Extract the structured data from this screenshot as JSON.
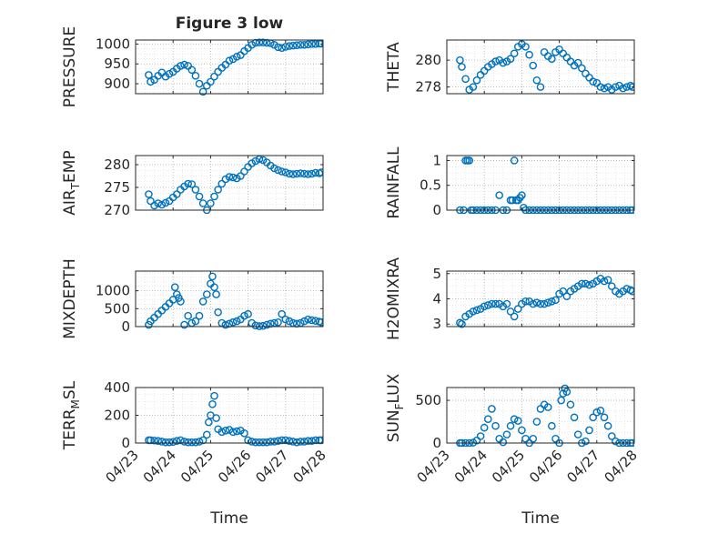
{
  "title": "Figure 3 low",
  "xlabel": "Time",
  "colors": {
    "marker": "#0072BD",
    "axis": "#262626",
    "grid": "#b0b0b0",
    "background": "#ffffff"
  },
  "x_ticks": [
    "04/23",
    "04/24",
    "04/25",
    "04/26",
    "04/27",
    "04/28"
  ],
  "chart_data": [
    {
      "type": "scatter",
      "ylabel": "PRESSURE",
      "xlim": [
        0,
        5
      ],
      "ylim": [
        875,
        1010
      ],
      "yticks": [
        900,
        950,
        1000
      ],
      "grid": true,
      "x": [
        0.35,
        0.4,
        0.5,
        0.6,
        0.7,
        0.8,
        0.9,
        1.0,
        1.1,
        1.2,
        1.3,
        1.4,
        1.5,
        1.6,
        1.7,
        1.8,
        1.9,
        2.0,
        2.1,
        2.2,
        2.3,
        2.4,
        2.5,
        2.6,
        2.7,
        2.8,
        2.9,
        3.0,
        3.1,
        3.2,
        3.3,
        3.4,
        3.5,
        3.6,
        3.7,
        3.8,
        3.9,
        4.0,
        4.1,
        4.2,
        4.3,
        4.4,
        4.5,
        4.6,
        4.7,
        4.8,
        4.9,
        4.95
      ],
      "y": [
        922,
        905,
        910,
        920,
        928,
        918,
        925,
        930,
        938,
        945,
        948,
        945,
        935,
        920,
        900,
        880,
        895,
        905,
        918,
        930,
        940,
        948,
        958,
        962,
        968,
        972,
        982,
        990,
        998,
        1003,
        1004,
        1004,
        1003,
        1002,
        998,
        992,
        990,
        993,
        995,
        996,
        997,
        998,
        998,
        999,
        1000,
        1000,
        1001,
        1001
      ]
    },
    {
      "type": "scatter",
      "ylabel": "THETA",
      "xlim": [
        0,
        5
      ],
      "ylim": [
        277.5,
        281.5
      ],
      "yticks": [
        278,
        280
      ],
      "grid": true,
      "x": [
        0.35,
        0.4,
        0.5,
        0.6,
        0.7,
        0.8,
        0.9,
        1.0,
        1.1,
        1.2,
        1.3,
        1.4,
        1.5,
        1.6,
        1.7,
        1.8,
        1.9,
        2.0,
        2.1,
        2.2,
        2.3,
        2.4,
        2.5,
        2.6,
        2.7,
        2.8,
        2.9,
        3.0,
        3.1,
        3.2,
        3.3,
        3.4,
        3.5,
        3.6,
        3.7,
        3.8,
        3.9,
        4.0,
        4.1,
        4.2,
        4.3,
        4.4,
        4.5,
        4.6,
        4.7,
        4.8,
        4.9,
        4.95
      ],
      "y": [
        280.0,
        279.5,
        278.6,
        277.8,
        278.0,
        278.5,
        278.9,
        279.2,
        279.5,
        279.7,
        279.9,
        280.0,
        279.8,
        279.9,
        280.1,
        280.5,
        281.0,
        281.2,
        281.0,
        280.4,
        279.6,
        278.5,
        278.0,
        280.6,
        280.3,
        280.1,
        280.6,
        280.8,
        280.5,
        280.2,
        279.9,
        279.6,
        279.8,
        279.4,
        279.0,
        278.7,
        278.4,
        278.3,
        278.0,
        277.9,
        278.0,
        277.8,
        278.0,
        278.1,
        277.9,
        278.0,
        278.1,
        278.0
      ]
    },
    {
      "type": "scatter",
      "ylabel": "AIR_TEMP",
      "xlim": [
        0,
        5
      ],
      "ylim": [
        270,
        282
      ],
      "yticks": [
        270,
        275,
        280
      ],
      "grid": true,
      "x": [
        0.35,
        0.4,
        0.5,
        0.6,
        0.7,
        0.8,
        0.9,
        1.0,
        1.1,
        1.2,
        1.3,
        1.4,
        1.5,
        1.6,
        1.7,
        1.8,
        1.9,
        2.0,
        2.1,
        2.2,
        2.3,
        2.4,
        2.5,
        2.6,
        2.7,
        2.8,
        2.9,
        3.0,
        3.1,
        3.2,
        3.3,
        3.4,
        3.5,
        3.6,
        3.7,
        3.8,
        3.9,
        4.0,
        4.1,
        4.2,
        4.3,
        4.4,
        4.5,
        4.6,
        4.7,
        4.8,
        4.9,
        4.95
      ],
      "y": [
        273.5,
        272,
        271,
        271.5,
        271.2,
        271.6,
        272,
        272.8,
        273.5,
        274.5,
        275.2,
        275.8,
        275.7,
        274.5,
        273,
        271.5,
        270,
        271.5,
        273,
        274.5,
        275.8,
        276.8,
        277.3,
        277.2,
        277,
        277.5,
        278.5,
        279.5,
        280.3,
        280.8,
        281.2,
        281,
        280.5,
        279.8,
        279.2,
        278.8,
        278.5,
        278.3,
        278,
        277.9,
        278,
        278.1,
        278,
        277.9,
        278,
        278.2,
        278.1,
        278.3
      ]
    },
    {
      "type": "scatter",
      "ylabel": "RAINFALL",
      "xlim": [
        0,
        5
      ],
      "ylim": [
        0,
        1.1
      ],
      "yticks": [
        0,
        0.5,
        1
      ],
      "grid": true,
      "x": [
        0.35,
        0.45,
        0.5,
        0.55,
        0.6,
        0.65,
        0.7,
        0.8,
        0.9,
        1.0,
        1.1,
        1.2,
        1.3,
        1.4,
        1.5,
        1.6,
        1.7,
        1.75,
        1.8,
        1.85,
        1.9,
        1.95,
        2.0,
        2.05,
        2.1,
        2.2,
        2.3,
        2.4,
        2.5,
        2.6,
        2.7,
        2.8,
        2.9,
        3.0,
        3.1,
        3.2,
        3.3,
        3.4,
        3.5,
        3.6,
        3.7,
        3.8,
        3.9,
        4.0,
        4.1,
        4.2,
        4.3,
        4.4,
        4.5,
        4.6,
        4.7,
        4.8,
        4.9,
        4.95
      ],
      "y": [
        0,
        0,
        1,
        1,
        1,
        0,
        0,
        0,
        0,
        0,
        0,
        0,
        0,
        0.3,
        0,
        0,
        0.2,
        0.2,
        1,
        0.2,
        0.2,
        0.25,
        0.3,
        0.05,
        0,
        0,
        0,
        0,
        0,
        0,
        0,
        0,
        0,
        0,
        0,
        0,
        0,
        0,
        0,
        0,
        0,
        0,
        0,
        0,
        0,
        0,
        0,
        0,
        0,
        0,
        0,
        0,
        0,
        0
      ]
    },
    {
      "type": "scatter",
      "ylabel": "MIXDEPTH",
      "xlim": [
        0,
        5
      ],
      "ylim": [
        0,
        1550
      ],
      "yticks": [
        0,
        500,
        1000
      ],
      "grid": true,
      "x": [
        0.35,
        0.4,
        0.5,
        0.6,
        0.7,
        0.8,
        0.9,
        1.0,
        1.05,
        1.1,
        1.15,
        1.2,
        1.3,
        1.4,
        1.5,
        1.6,
        1.7,
        1.8,
        1.9,
        2.0,
        2.05,
        2.1,
        2.15,
        2.2,
        2.3,
        2.4,
        2.5,
        2.6,
        2.7,
        2.8,
        2.9,
        3.0,
        3.1,
        3.2,
        3.3,
        3.4,
        3.5,
        3.6,
        3.7,
        3.8,
        3.9,
        4.0,
        4.1,
        4.2,
        4.3,
        4.4,
        4.5,
        4.6,
        4.7,
        4.8,
        4.9,
        4.95
      ],
      "y": [
        50,
        150,
        250,
        350,
        450,
        550,
        650,
        750,
        1100,
        900,
        800,
        700,
        50,
        300,
        100,
        150,
        300,
        700,
        900,
        1200,
        1400,
        1100,
        900,
        400,
        100,
        50,
        80,
        120,
        150,
        200,
        300,
        350,
        100,
        30,
        10,
        20,
        50,
        80,
        100,
        120,
        350,
        200,
        150,
        100,
        80,
        100,
        150,
        200,
        180,
        160,
        140,
        120
      ]
    },
    {
      "type": "scatter",
      "ylabel": "H2OMIXRA",
      "xlim": [
        0,
        5
      ],
      "ylim": [
        2.9,
        5.1
      ],
      "yticks": [
        3,
        4,
        5
      ],
      "grid": true,
      "x": [
        0.35,
        0.4,
        0.5,
        0.6,
        0.7,
        0.8,
        0.9,
        1.0,
        1.1,
        1.2,
        1.3,
        1.4,
        1.5,
        1.6,
        1.7,
        1.8,
        1.9,
        2.0,
        2.1,
        2.2,
        2.3,
        2.4,
        2.5,
        2.6,
        2.7,
        2.8,
        2.9,
        3.0,
        3.1,
        3.2,
        3.3,
        3.4,
        3.5,
        3.6,
        3.7,
        3.8,
        3.9,
        4.0,
        4.1,
        4.2,
        4.3,
        4.4,
        4.5,
        4.6,
        4.7,
        4.8,
        4.9,
        4.95
      ],
      "y": [
        3.05,
        3.0,
        3.3,
        3.4,
        3.5,
        3.55,
        3.6,
        3.7,
        3.75,
        3.8,
        3.8,
        3.8,
        3.7,
        3.8,
        3.5,
        3.3,
        3.6,
        3.8,
        3.9,
        3.9,
        3.8,
        3.85,
        3.8,
        3.8,
        3.85,
        3.9,
        3.95,
        4.2,
        4.3,
        4.1,
        4.3,
        4.4,
        4.5,
        4.6,
        4.6,
        4.55,
        4.6,
        4.7,
        4.8,
        4.7,
        4.75,
        4.5,
        4.3,
        4.2,
        4.3,
        4.4,
        4.35,
        4.3
      ]
    },
    {
      "type": "scatter",
      "ylabel": "TERR_MSL",
      "xlim": [
        0,
        5
      ],
      "ylim": [
        0,
        400
      ],
      "yticks": [
        0,
        200,
        400
      ],
      "grid": true,
      "x": [
        0.35,
        0.4,
        0.5,
        0.6,
        0.7,
        0.8,
        0.9,
        1.0,
        1.1,
        1.2,
        1.3,
        1.4,
        1.5,
        1.6,
        1.7,
        1.8,
        1.9,
        1.95,
        2.0,
        2.05,
        2.1,
        2.15,
        2.2,
        2.3,
        2.4,
        2.5,
        2.6,
        2.7,
        2.8,
        2.9,
        3.0,
        3.1,
        3.2,
        3.3,
        3.4,
        3.5,
        3.6,
        3.7,
        3.8,
        3.9,
        4.0,
        4.1,
        4.2,
        4.3,
        4.4,
        4.5,
        4.6,
        4.7,
        4.8,
        4.9,
        4.95
      ],
      "y": [
        20,
        20,
        18,
        15,
        10,
        5,
        5,
        8,
        15,
        20,
        10,
        5,
        5,
        5,
        10,
        20,
        60,
        150,
        200,
        280,
        340,
        180,
        100,
        80,
        90,
        95,
        80,
        85,
        90,
        70,
        20,
        10,
        5,
        5,
        5,
        5,
        10,
        10,
        15,
        20,
        20,
        15,
        10,
        5,
        10,
        10,
        15,
        15,
        20,
        20,
        20
      ]
    },
    {
      "type": "scatter",
      "ylabel": "SUN_FLUX",
      "xlim": [
        0,
        5
      ],
      "ylim": [
        0,
        650
      ],
      "yticks": [
        0,
        500
      ],
      "grid": true,
      "x": [
        0.35,
        0.4,
        0.5,
        0.6,
        0.7,
        0.8,
        0.9,
        1.0,
        1.1,
        1.2,
        1.3,
        1.4,
        1.5,
        1.6,
        1.7,
        1.8,
        1.9,
        2.0,
        2.1,
        2.2,
        2.3,
        2.4,
        2.5,
        2.6,
        2.7,
        2.8,
        2.9,
        3.0,
        3.05,
        3.1,
        3.15,
        3.2,
        3.3,
        3.4,
        3.5,
        3.6,
        3.7,
        3.8,
        3.9,
        4.0,
        4.1,
        4.2,
        4.3,
        4.4,
        4.5,
        4.6,
        4.7,
        4.8,
        4.9,
        4.95
      ],
      "y": [
        0,
        0,
        0,
        0,
        5,
        30,
        80,
        180,
        280,
        400,
        200,
        50,
        10,
        100,
        200,
        280,
        260,
        150,
        50,
        0,
        50,
        250,
        400,
        450,
        420,
        200,
        50,
        0,
        500,
        580,
        640,
        600,
        450,
        300,
        100,
        0,
        20,
        150,
        300,
        360,
        380,
        300,
        200,
        80,
        20,
        0,
        0,
        0,
        0,
        0
      ]
    }
  ]
}
